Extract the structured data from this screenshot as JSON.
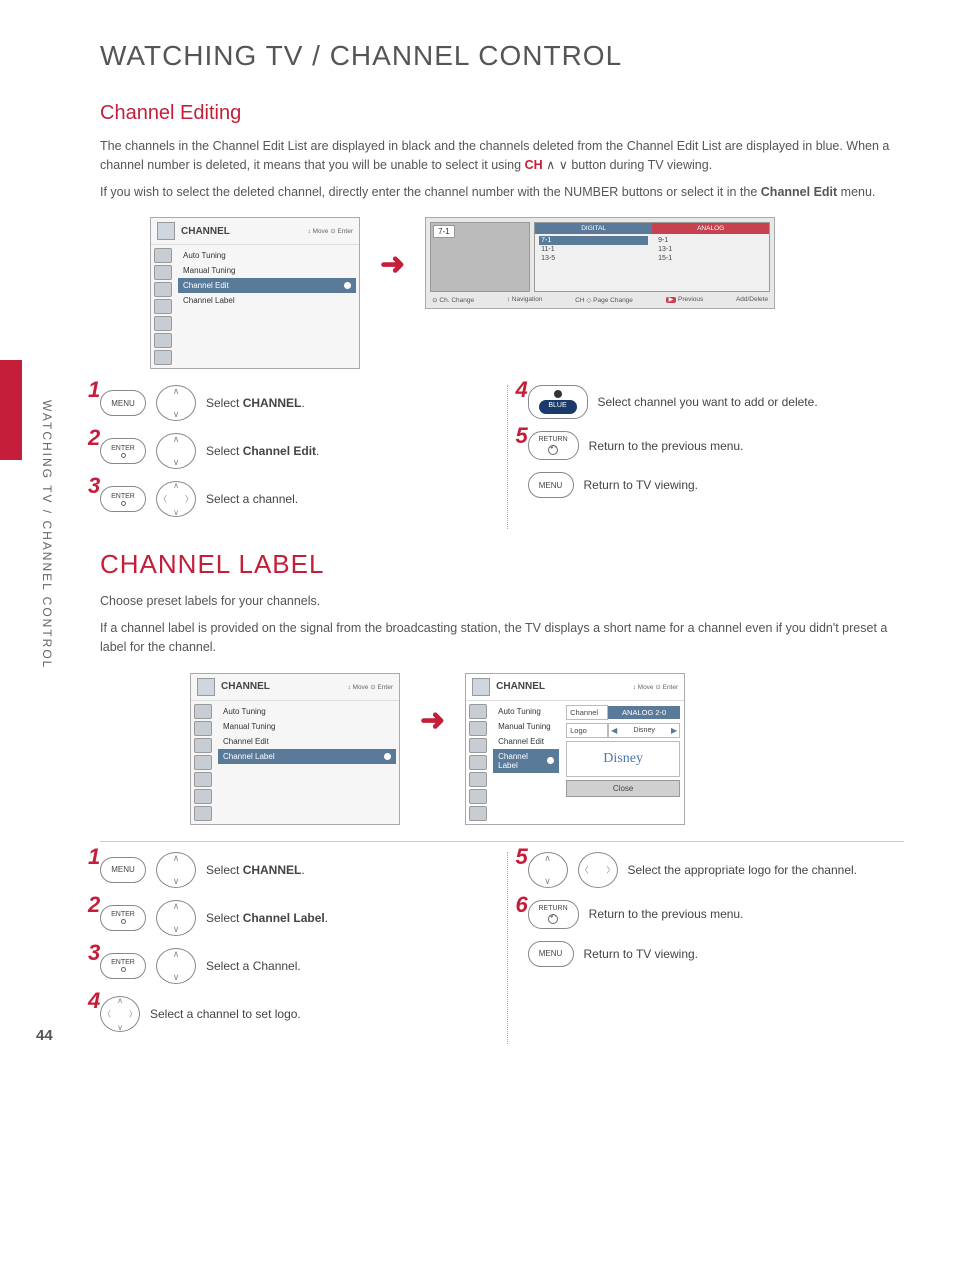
{
  "side_label": "WATCHING TV / CHANNEL CONTROL",
  "page_number": "44",
  "h1": "WATCHING TV / CHANNEL CONTROL",
  "editing": {
    "heading": "Channel Editing",
    "p1": "The channels in the Channel Edit List are displayed in black and the channels deleted from the Channel Edit List are displayed in blue. When a channel number is deleted, it means that you will be unable to select it using ",
    "p1_ch": "CH",
    "p1_btn": " ∧ ∨ button during TV viewing.",
    "p2": "If you wish to select the deleted channel, directly enter the channel number with the NUMBER buttons or select it in the ",
    "p2_b": "Channel Edit",
    "p2_suffix": " menu."
  },
  "menu1": {
    "title": "CHANNEL",
    "hints": "↕ Move   ⊙ Enter",
    "items": [
      "Auto Tuning",
      "Manual Tuning",
      "Channel Edit",
      "Channel Label"
    ],
    "selected_index": 2
  },
  "tvgrid": {
    "preview_ch": "7-1",
    "tab_digital": "DIGITAL",
    "tab_analog": "ANALOG",
    "col1": [
      "7-1",
      "11-1",
      "13-5"
    ],
    "col2": [
      "9-1",
      "13-1",
      "15-1"
    ],
    "footer": {
      "a": "⊙ Ch. Change",
      "b": "↕ Navigation",
      "c": "CH ◇ Page Change",
      "d_btn": "▶",
      "d": "Previous",
      "e": "Add/Delete"
    }
  },
  "steps_edit_left": [
    {
      "num": "1",
      "btn": "MENU",
      "dpad": "ud",
      "text": "Select ",
      "bold": "CHANNEL",
      "suffix": "."
    },
    {
      "num": "2",
      "btn": "ENTER",
      "btn_type": "enter",
      "dpad": "ud",
      "text": "Select ",
      "bold": "Channel Edit",
      "suffix": "."
    },
    {
      "num": "3",
      "btn": "ENTER",
      "btn_type": "enter",
      "dpad": "full",
      "text": "Select a channel."
    }
  ],
  "steps_edit_right": [
    {
      "num": "4",
      "btn": "BLUE",
      "btn_type": "blue",
      "pre_dot": true,
      "text": "Select channel you want to add or delete."
    },
    {
      "num": "5",
      "btn": "RETURN",
      "btn_type": "return",
      "text": "Return to the previous menu."
    },
    {
      "num": "",
      "btn": "MENU",
      "text": "Return to TV viewing."
    }
  ],
  "label": {
    "heading": "CHANNEL LABEL",
    "p1": "Choose preset labels for your channels.",
    "p2": "If a channel label is provided on the signal from the broadcasting station, the TV displays a short name for a channel even if you didn't preset a label for the channel."
  },
  "menu2": {
    "title": "CHANNEL",
    "hints": "↕ Move   ⊙ Enter",
    "items": [
      "Auto Tuning",
      "Manual Tuning",
      "Channel Edit",
      "Channel Label"
    ],
    "selected_index": 3
  },
  "label_panel": {
    "title": "CHANNEL",
    "hints": "↕ Move   ⊙ Enter",
    "items": [
      "Auto Tuning",
      "Manual Tuning",
      "Channel Edit",
      "Channel Label"
    ],
    "selected_index": 3,
    "ch_lbl": "Channel",
    "ch_val": "ANALOG 2-0",
    "logo_lbl": "Logo",
    "logo_val": "Disney",
    "close": "Close"
  },
  "steps_label_left": [
    {
      "num": "1",
      "btn": "MENU",
      "dpad": "ud",
      "text": "Select ",
      "bold": "CHANNEL",
      "suffix": "."
    },
    {
      "num": "2",
      "btn": "ENTER",
      "btn_type": "enter",
      "dpad": "ud",
      "text": "Select ",
      "bold": "Channel Label",
      "suffix": "."
    },
    {
      "num": "3",
      "btn": "ENTER",
      "btn_type": "enter",
      "dpad": "ud",
      "text": "Select a Channel."
    },
    {
      "num": "4",
      "dpad": "full",
      "text": "Select a channel to set logo."
    }
  ],
  "steps_label_right": [
    {
      "num": "5",
      "dpad_pair": true,
      "text": "Select the appropriate logo for the channel."
    },
    {
      "num": "6",
      "btn": "RETURN",
      "btn_type": "return",
      "text": "Return to the previous menu."
    },
    {
      "num": "",
      "btn": "MENU",
      "text": "Return to TV viewing."
    }
  ]
}
